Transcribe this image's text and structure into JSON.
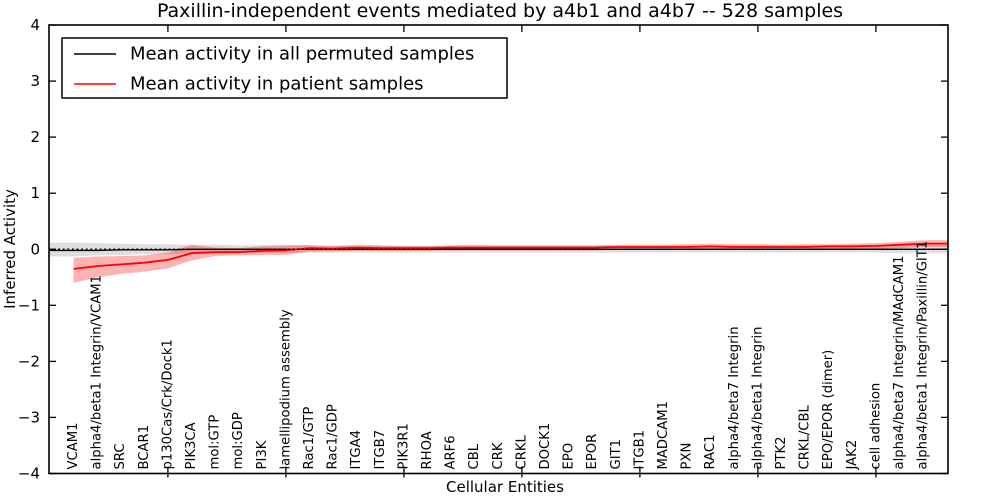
{
  "chart_data": {
    "type": "line",
    "title": "Paxillin-independent events mediated by a4b1 and a4b7 -- 528 samples",
    "xlabel": "Cellular Entities",
    "ylabel": "Inferred Activity",
    "ylim": [
      -4,
      4
    ],
    "yticks": [
      -4,
      -3,
      -2,
      -1,
      0,
      1,
      2,
      3,
      4
    ],
    "x_major_tick_indices": [
      4,
      9,
      14,
      19,
      24,
      29,
      34
    ],
    "grid": false,
    "zero_line": "dotted",
    "legend_position": "upper left",
    "categories": [
      "VCAM1",
      "alpha4/beta1 Integrin/VCAM1",
      "SRC",
      "BCAR1",
      "p130Cas/Crk/Dock1",
      "PIK3CA",
      "mol:GTP",
      "mol:GDP",
      "PI3K",
      "lamellipodium assembly",
      "Rac1/GTP",
      "Rac1/GDP",
      "ITGA4",
      "ITGB7",
      "PIK3R1",
      "RHOA",
      "ARF6",
      "CBL",
      "CRK",
      "CRKL",
      "DOCK1",
      "EPO",
      "EPOR",
      "GIT1",
      "ITGB1",
      "MADCAM1",
      "PXN",
      "RAC1",
      "alpha4/beta7 Integrin",
      "alpha4/beta1 Integrin",
      "PTK2",
      "CRKL/CBL",
      "EPO/EPOR (dimer)",
      "JAK2",
      "cell adhesion",
      "alpha4/beta7 Integrin/MAdCAM1",
      "alpha4/beta1 Integrin/Paxillin/GIT1"
    ],
    "series": [
      {
        "name": "Mean activity in all permuted samples",
        "color": "#000000",
        "band_color": "#000000",
        "band_opacity": 0.13,
        "line_width": 1.4,
        "extend_left": true,
        "extend_right": true,
        "values": [
          -0.02,
          -0.02,
          -0.01,
          -0.01,
          -0.01,
          0,
          0,
          0,
          0,
          0,
          0,
          0,
          0,
          0,
          0,
          0,
          0,
          0,
          0,
          0,
          0,
          0,
          0,
          0,
          0,
          0,
          0,
          0,
          0,
          0,
          0,
          0,
          0,
          0,
          0,
          0,
          0
        ],
        "band_low": [
          -0.13,
          -0.11,
          -0.1,
          -0.09,
          -0.09,
          -0.08,
          -0.08,
          -0.07,
          -0.07,
          -0.07,
          -0.06,
          -0.06,
          -0.06,
          -0.06,
          -0.06,
          -0.06,
          -0.06,
          -0.06,
          -0.06,
          -0.06,
          -0.06,
          -0.06,
          -0.06,
          -0.06,
          -0.06,
          -0.06,
          -0.06,
          -0.06,
          -0.06,
          -0.06,
          -0.06,
          -0.06,
          -0.06,
          -0.06,
          -0.06,
          -0.07,
          -0.07
        ],
        "band_high": [
          0.12,
          0.11,
          0.1,
          0.09,
          0.09,
          0.08,
          0.08,
          0.07,
          0.07,
          0.07,
          0.07,
          0.06,
          0.06,
          0.06,
          0.06,
          0.06,
          0.06,
          0.06,
          0.06,
          0.06,
          0.06,
          0.06,
          0.06,
          0.06,
          0.06,
          0.06,
          0.06,
          0.06,
          0.07,
          0.07,
          0.07,
          0.07,
          0.07,
          0.07,
          0.07,
          0.08,
          0.08
        ]
      },
      {
        "name": "Mean activity in patient samples",
        "color": "#ff0000",
        "band_color": "#ff0000",
        "band_opacity": 0.3,
        "line_width": 1.8,
        "extend_left": false,
        "extend_right": true,
        "values": [
          -0.35,
          -0.3,
          -0.27,
          -0.24,
          -0.19,
          -0.07,
          -0.05,
          -0.05,
          -0.03,
          -0.02,
          0.02,
          0.01,
          0.03,
          0.02,
          0.02,
          0.02,
          0.03,
          0.03,
          0.03,
          0.03,
          0.03,
          0.03,
          0.03,
          0.04,
          0.04,
          0.04,
          0.04,
          0.05,
          0.04,
          0.04,
          0.04,
          0.04,
          0.05,
          0.05,
          0.06,
          0.08,
          0.1
        ],
        "band_low": [
          -0.6,
          -0.5,
          -0.44,
          -0.4,
          -0.34,
          -0.2,
          -0.12,
          -0.11,
          -0.1,
          -0.1,
          -0.04,
          -0.04,
          -0.03,
          -0.03,
          -0.03,
          -0.03,
          -0.02,
          -0.02,
          -0.02,
          -0.02,
          -0.02,
          -0.02,
          -0.02,
          -0.01,
          -0.01,
          -0.01,
          -0.01,
          -0.01,
          -0.01,
          -0.01,
          -0.01,
          -0.01,
          0.0,
          0.0,
          0.01,
          0.02,
          0.04
        ],
        "band_high": [
          -0.15,
          -0.13,
          -0.12,
          -0.11,
          -0.06,
          0.08,
          0.03,
          0.02,
          0.05,
          0.07,
          0.07,
          0.06,
          0.08,
          0.07,
          0.06,
          0.06,
          0.07,
          0.08,
          0.07,
          0.07,
          0.07,
          0.07,
          0.07,
          0.08,
          0.08,
          0.08,
          0.09,
          0.1,
          0.09,
          0.09,
          0.08,
          0.09,
          0.09,
          0.1,
          0.11,
          0.13,
          0.16
        ]
      }
    ]
  },
  "legend": {
    "items": [
      {
        "label": "Mean activity in all permuted samples",
        "color": "#000000"
      },
      {
        "label": "Mean activity in patient samples",
        "color": "#ff0000"
      }
    ]
  }
}
